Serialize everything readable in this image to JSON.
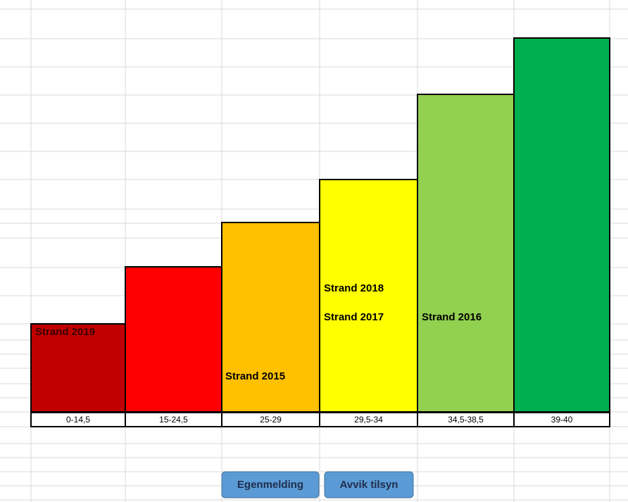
{
  "columns": [
    "0-14,5",
    "15-24,5",
    "25-29",
    "29,5-34",
    "34,5-38,5",
    "39-40"
  ],
  "annotations": [
    "Strand 2019",
    "Strand 2015",
    "Strand 2018",
    "Strand 2017",
    "Strand 2016"
  ],
  "buttons": [
    "Egenmelding",
    "Avvik tilsyn"
  ]
}
